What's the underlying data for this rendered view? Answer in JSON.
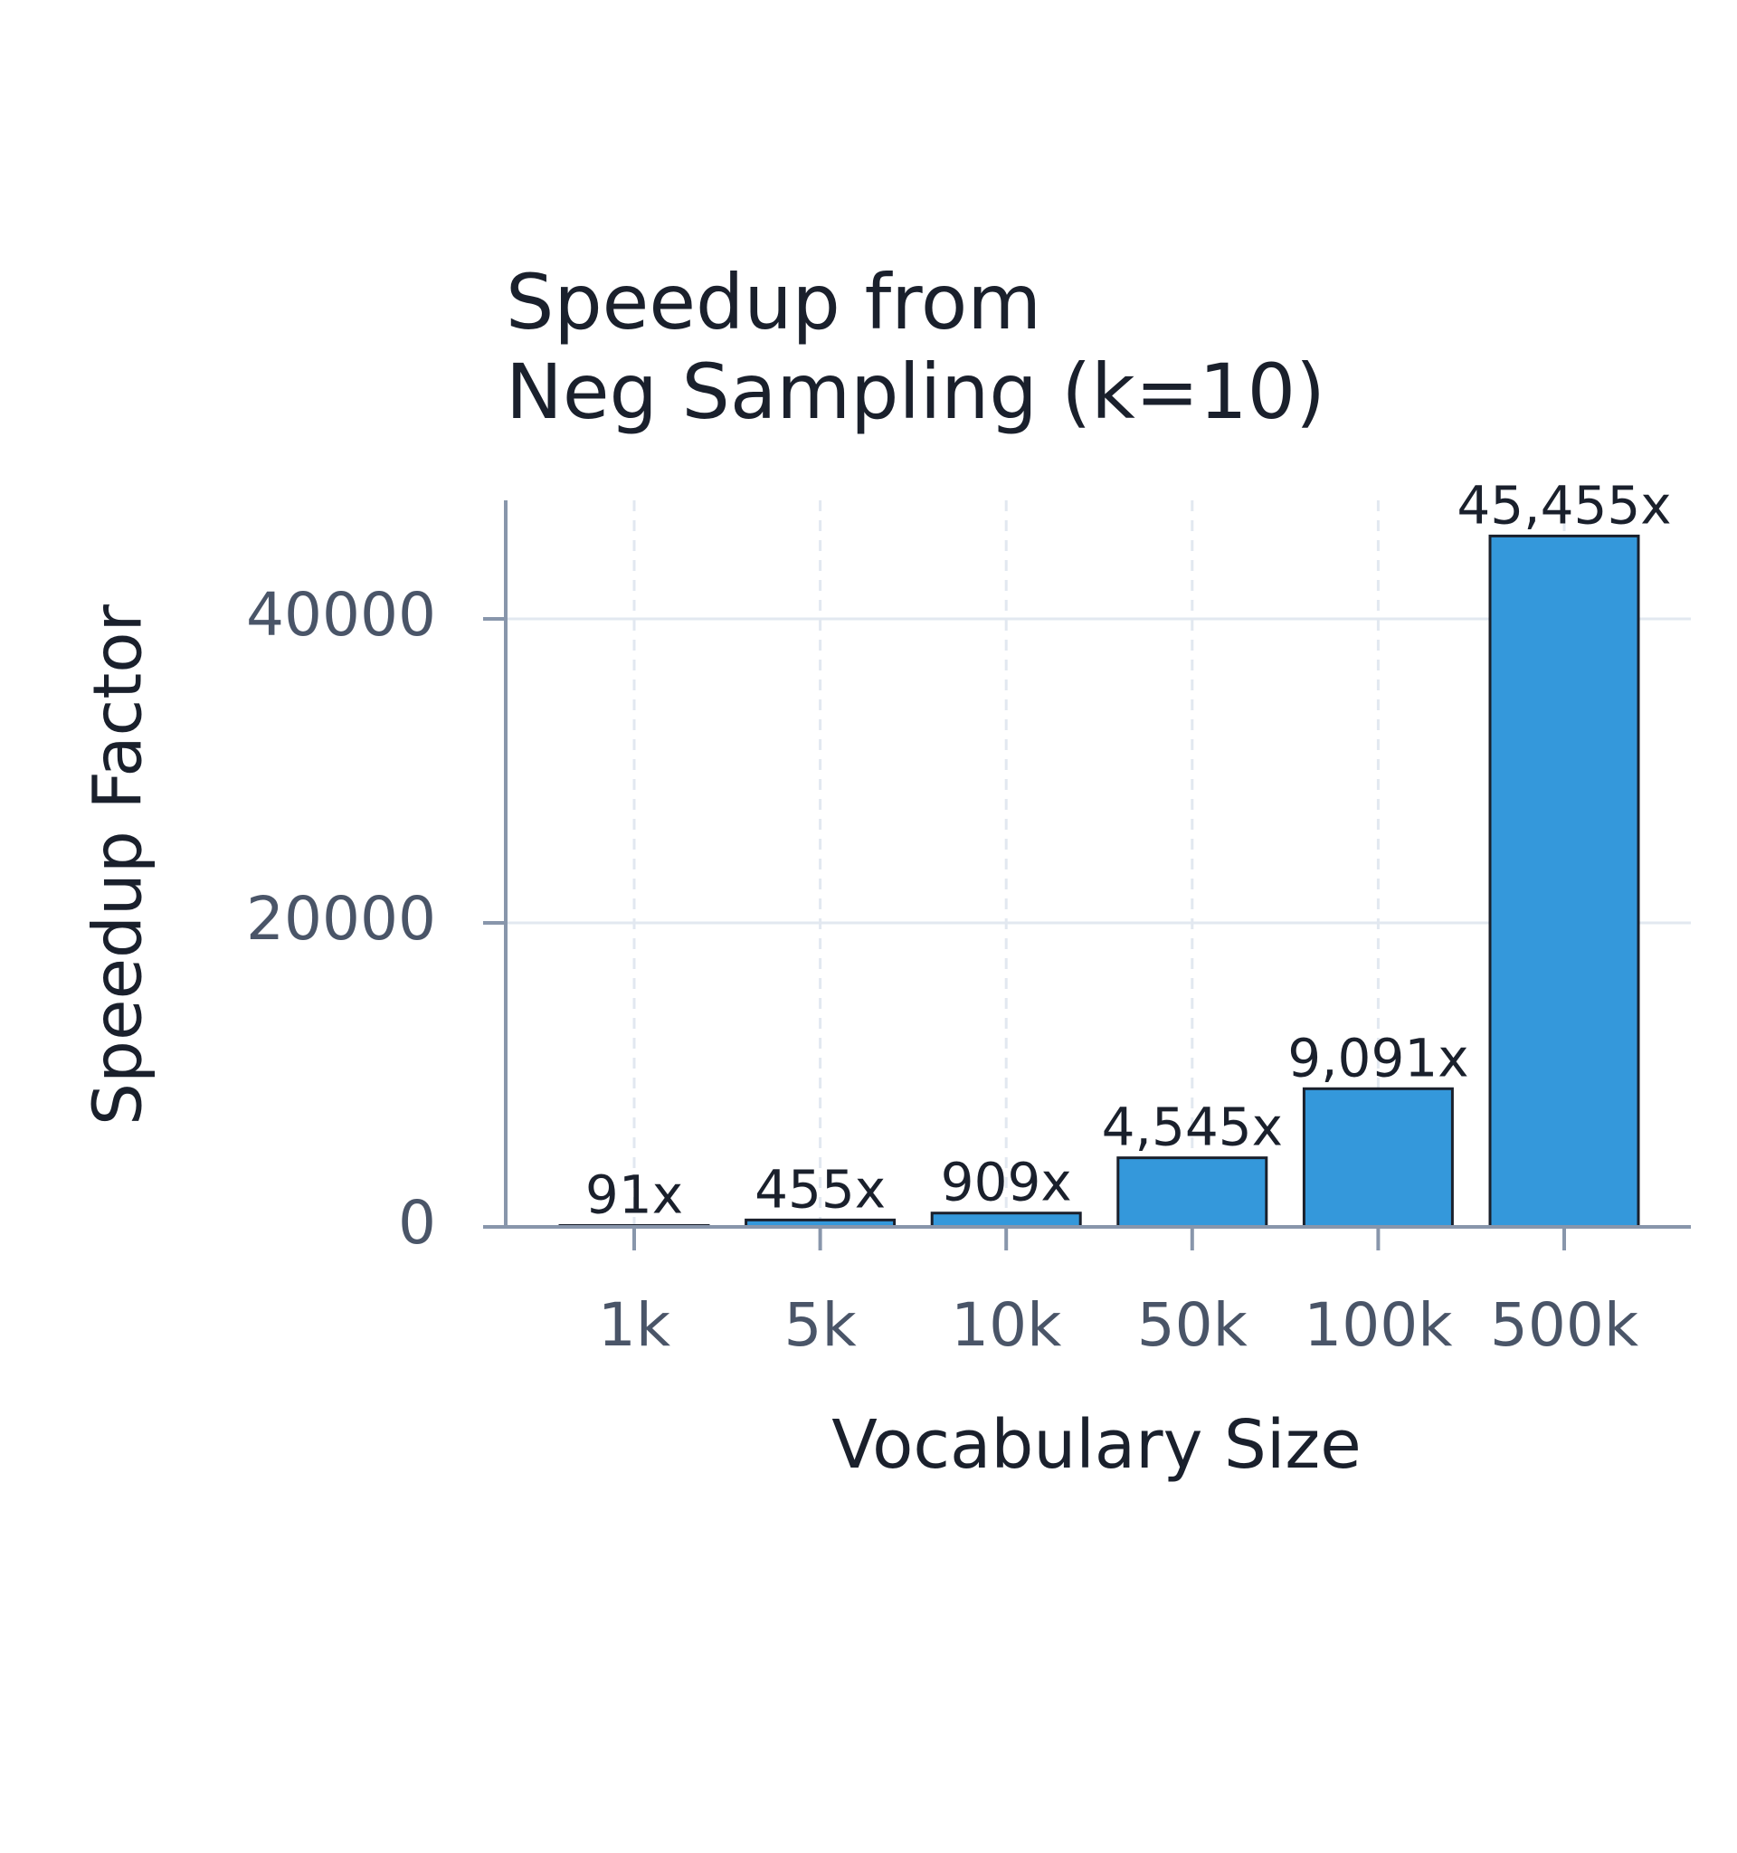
{
  "chart_data": {
    "type": "bar",
    "title": [
      "Speedup from",
      "Neg Sampling (k=10)"
    ],
    "xlabel": "Vocabulary Size",
    "ylabel": "Speedup Factor",
    "categories": [
      "1k",
      "5k",
      "10k",
      "50k",
      "100k",
      "500k"
    ],
    "values": [
      91,
      455,
      909,
      4545,
      9091,
      45455
    ],
    "value_labels": [
      "91x",
      "455x",
      "909x",
      "4,545x",
      "9,091x",
      "45,455x"
    ],
    "color": "#3498db",
    "ylim": [
      0,
      47800
    ],
    "yticks": [
      0,
      20000,
      40000
    ],
    "grid": true
  }
}
